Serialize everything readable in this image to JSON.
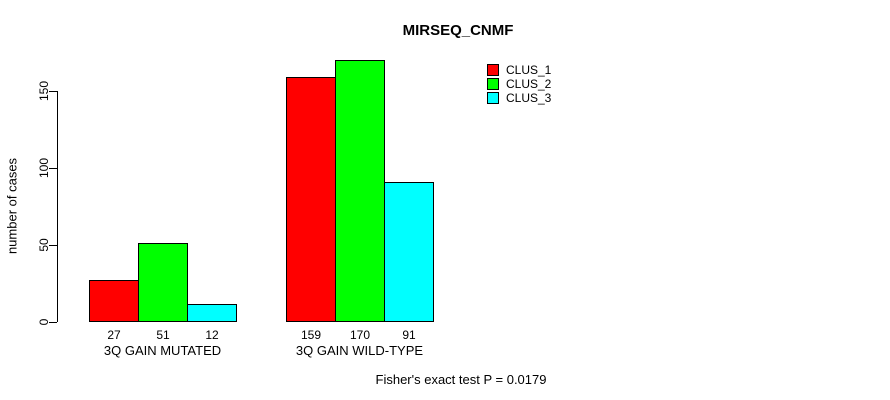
{
  "chart_data": {
    "type": "bar",
    "title": "MIRSEQ_CNMF",
    "xlabel": "",
    "ylabel": "number of cases",
    "categories": [
      "3Q GAIN MUTATED",
      "3Q GAIN WILD-TYPE"
    ],
    "series": [
      {
        "name": "CLUS_1",
        "color": "#ff0000",
        "values": [
          27,
          159
        ]
      },
      {
        "name": "CLUS_2",
        "color": "#00ff00",
        "values": [
          51,
          170
        ]
      },
      {
        "name": "CLUS_3",
        "color": "#00ffff",
        "values": [
          12,
          91
        ]
      }
    ],
    "bar_value_labels": [
      [
        "27",
        "51",
        "12"
      ],
      [
        "159",
        "170",
        "91"
      ]
    ],
    "yticks": [
      0,
      50,
      100,
      150
    ],
    "ylim": [
      0,
      175
    ],
    "grid": false,
    "legend_position": "top-right",
    "annotation": "Fisher's exact test P = 0.0179"
  },
  "colors": {
    "background": "#ffffff",
    "axis": "#000000",
    "text": "#000000"
  }
}
